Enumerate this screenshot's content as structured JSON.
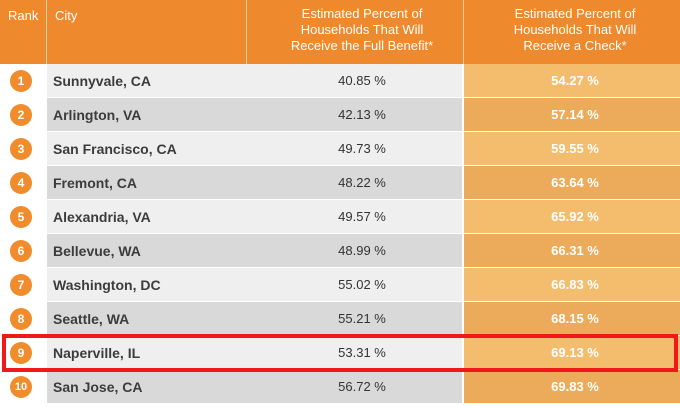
{
  "chart_data": {
    "type": "table",
    "columns": [
      "Rank",
      "City",
      "Estimated Percent of Households That Will Receive the Full Benefit*",
      "Estimated Percent of Households That Will Receive a Check*"
    ],
    "header_lines": {
      "full": [
        "Estimated Percent of",
        "Households That Will",
        "Receive the Full Benefit*"
      ],
      "check": [
        "Estimated Percent of",
        "Households That Will",
        "Receive a Check*"
      ]
    },
    "rows": [
      {
        "rank": "1",
        "city": "Sunnyvale, CA",
        "full_benefit": "40.85 %",
        "check": "54.27 %"
      },
      {
        "rank": "2",
        "city": "Arlington, VA",
        "full_benefit": "42.13 %",
        "check": "57.14 %"
      },
      {
        "rank": "3",
        "city": "San Francisco, CA",
        "full_benefit": "49.73 %",
        "check": "59.55 %"
      },
      {
        "rank": "4",
        "city": "Fremont, CA",
        "full_benefit": "48.22 %",
        "check": "63.64 %"
      },
      {
        "rank": "5",
        "city": "Alexandria, VA",
        "full_benefit": "49.57 %",
        "check": "65.92 %"
      },
      {
        "rank": "6",
        "city": "Bellevue, WA",
        "full_benefit": "48.99 %",
        "check": "66.31 %"
      },
      {
        "rank": "7",
        "city": "Washington, DC",
        "full_benefit": "55.02 %",
        "check": "66.83 %"
      },
      {
        "rank": "8",
        "city": "Seattle, WA",
        "full_benefit": "55.21 %",
        "check": "68.15 %"
      },
      {
        "rank": "9",
        "city": "Naperville, IL",
        "full_benefit": "53.31 %",
        "check": "69.13 %"
      },
      {
        "rank": "10",
        "city": "San Jose, CA",
        "full_benefit": "56.72 %",
        "check": "69.83 %"
      }
    ],
    "highlighted_rank": "9"
  },
  "colors": {
    "header": "#ee8a2d",
    "badge": "#f08c2c",
    "highlight_border": "#f01818"
  }
}
